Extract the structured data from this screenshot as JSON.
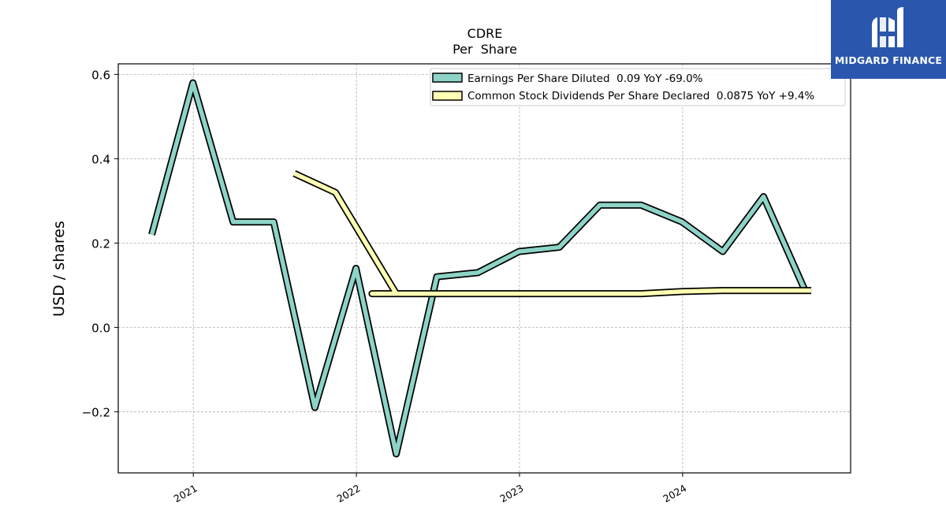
{
  "brand": {
    "name": "MIDGARD FINANCE",
    "background_color": "#2a57ad"
  },
  "chart_data": {
    "type": "line",
    "title": "CDRE",
    "subtitle": "Per  Share",
    "xlabel": "",
    "ylabel": "USD / shares",
    "x_tick_labels": [
      "2021",
      "2022",
      "2023",
      "2024"
    ],
    "y_tick_labels": [
      "0.6",
      "0.4",
      "0.2",
      "0.0",
      "−0.2"
    ],
    "y_ticks": [
      0.6,
      0.4,
      0.2,
      0.0,
      -0.2
    ],
    "x_ticks": [
      "2021-01-01",
      "2022-01-01",
      "2023-01-01",
      "2024-01-01"
    ],
    "xlim": [
      "2020-07-17",
      "2025-01-11"
    ],
    "ylim": [
      -0.345,
      0.625
    ],
    "grid": true,
    "legend_position": "top-right",
    "series": [
      {
        "name": "Earnings Per Share Diluted  0.09 YoY -69.0%",
        "color": "#8dd3c7",
        "x": [
          "2020-09-30",
          "2020-12-31",
          "2021-03-31",
          "2021-06-30",
          "2021-09-30",
          "2021-12-31",
          "2022-03-31",
          "2022-06-30",
          "2022-09-30",
          "2022-12-31",
          "2023-03-31",
          "2023-06-30",
          "2023-09-30",
          "2023-12-31",
          "2024-03-31",
          "2024-06-30",
          "2024-09-30"
        ],
        "values": [
          0.22,
          0.58,
          0.25,
          0.25,
          -0.19,
          0.14,
          -0.3,
          0.12,
          0.13,
          0.18,
          0.19,
          0.29,
          0.29,
          0.25,
          0.18,
          0.31,
          0.09
        ]
      },
      {
        "name": "Common Stock Dividends Per Share Declared  0.0875 YoY +9.4%",
        "color": "#ffffb3",
        "x": [
          "2021-08-15",
          "2021-11-15",
          "2022-03-31",
          "2022-02-05",
          "2022-06-30",
          "2022-09-30",
          "2022-12-31",
          "2023-03-31",
          "2023-06-30",
          "2023-09-30",
          "2023-12-31",
          "2024-03-31",
          "2024-06-30",
          "2024-09-30",
          "2024-10-15"
        ],
        "values": [
          0.365,
          0.32,
          0.08,
          0.08,
          0.08,
          0.08,
          0.08,
          0.08,
          0.08,
          0.08,
          0.085,
          0.0875,
          0.0875,
          0.0875,
          0.0875
        ]
      }
    ]
  }
}
